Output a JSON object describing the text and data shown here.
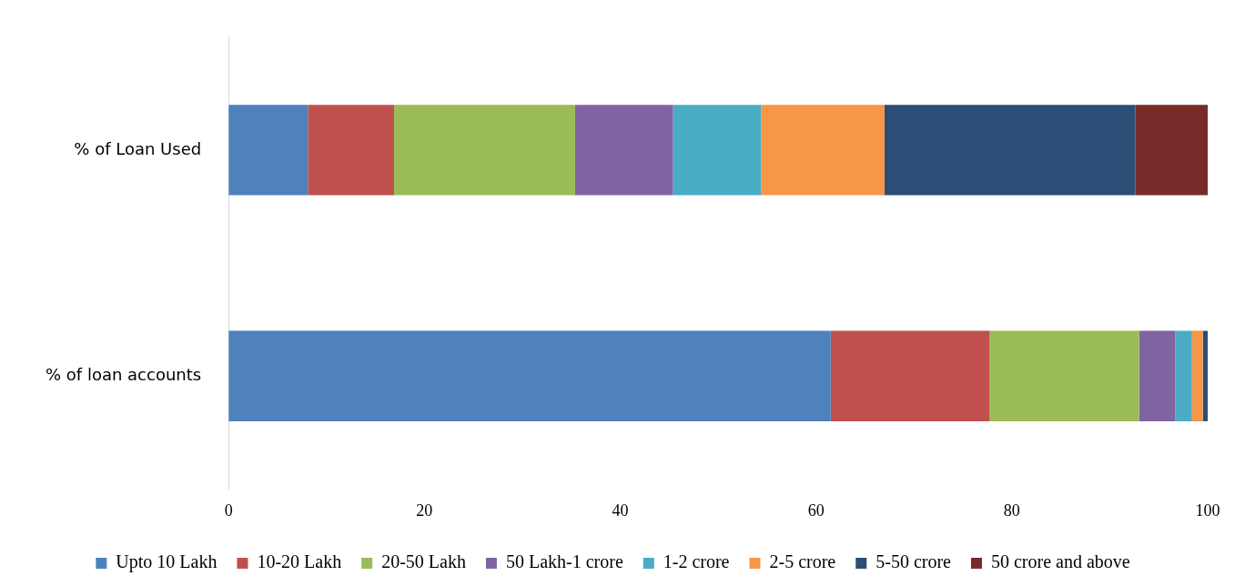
{
  "chart_data": {
    "type": "bar",
    "orientation": "horizontal",
    "stacked": true,
    "categories": [
      "% of Loan Used",
      "% of loan accounts"
    ],
    "series": [
      {
        "name": "Upto 10 Lakh",
        "color": "#4f81bd",
        "values": [
          8.1,
          61.5
        ]
      },
      {
        "name": "10-20 Lakh",
        "color": "#c0504d",
        "values": [
          8.8,
          16.2
        ]
      },
      {
        "name": "20-50 Lakh",
        "color": "#9bbb59",
        "values": [
          18.5,
          15.3
        ]
      },
      {
        "name": "50 Lakh-1 crore",
        "color": "#8064a2",
        "values": [
          10.0,
          3.7
        ]
      },
      {
        "name": "1-2 crore",
        "color": "#4bacc6",
        "values": [
          9.0,
          1.7
        ]
      },
      {
        "name": "2-5 crore",
        "color": "#f79646",
        "values": [
          12.6,
          1.1
        ]
      },
      {
        "name": "5-50 crore",
        "color": "#2c4d75",
        "values": [
          25.6,
          0.5
        ]
      },
      {
        "name": "50 crore and above",
        "color": "#772c2a",
        "values": [
          7.4,
          0
        ]
      }
    ],
    "xlim": [
      0,
      100
    ],
    "xticks": [
      0,
      20,
      40,
      60,
      80,
      100
    ],
    "grid": false,
    "legend": "bottom"
  }
}
